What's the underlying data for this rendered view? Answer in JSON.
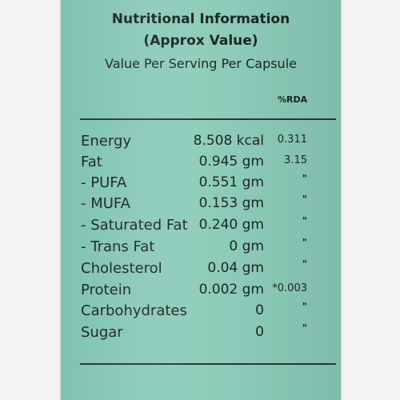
{
  "label": {
    "title": "Nutritional Information",
    "subtitle": "(Approx Value)",
    "serving": "Value Per Serving Per Capsule",
    "rda_header": "%RDA",
    "rows": [
      {
        "name": "Energy",
        "value": "8.508 kcal",
        "rda": "0.311"
      },
      {
        "name": "Fat",
        "value": "0.945 gm",
        "rda": "3.15"
      },
      {
        "name": "- PUFA",
        "value": "0.551 gm",
        "rda": "\""
      },
      {
        "name": "- MUFA",
        "value": "0.153 gm",
        "rda": "\""
      },
      {
        "name": "- Saturated Fat",
        "value": "0.240 gm",
        "rda": "\""
      },
      {
        "name": "- Trans Fat",
        "value": "0 gm",
        "rda": "\""
      },
      {
        "name": "Cholesterol",
        "value": "0.04 gm",
        "rda": "\""
      },
      {
        "name": "Protein",
        "value": "0.002 gm",
        "rda": "*0.003"
      },
      {
        "name": "Carbohydrates",
        "value": "0",
        "rda": "\""
      },
      {
        "name": "Sugar",
        "value": "0",
        "rda": "\""
      }
    ]
  },
  "colors": {
    "label_background": "#8fcdbb",
    "text": "#1b2623"
  }
}
